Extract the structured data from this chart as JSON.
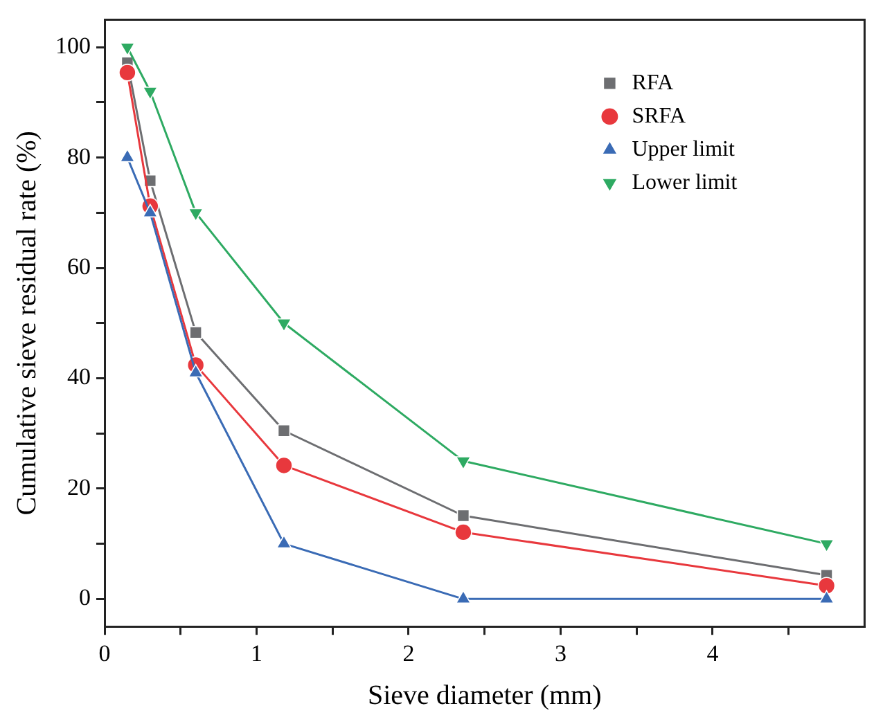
{
  "chart_data": {
    "type": "line",
    "xlabel": "Sieve diameter (mm)",
    "ylabel": "Cumulative sieve residual rate (%)",
    "x": [
      0.15,
      0.3,
      0.6,
      1.18,
      2.36,
      4.75
    ],
    "series": [
      {
        "name": "RFA",
        "color": "#6d6e71",
        "marker": "square",
        "values": [
          97.2,
          75.8,
          48.3,
          30.5,
          15.1,
          4.3
        ]
      },
      {
        "name": "SRFA",
        "color": "#e8383d",
        "marker": "circle",
        "values": [
          95.4,
          71.2,
          42.4,
          24.2,
          12.1,
          2.4
        ]
      },
      {
        "name": "Upper limit",
        "color": "#3a6bb5",
        "marker": "triangle",
        "values": [
          80,
          70,
          41,
          10,
          0,
          0
        ]
      },
      {
        "name": "Lower limit",
        "color": "#2eaa62",
        "marker": "triangle-down",
        "values": [
          100,
          92,
          70,
          50,
          25,
          10
        ]
      }
    ],
    "xlim": [
      0,
      5
    ],
    "xticks": [
      0,
      {
        "value": 0.5,
        "label": null
      },
      1,
      {
        "value": 1.5,
        "label": null
      },
      2,
      {
        "value": 2.5,
        "label": null
      },
      3,
      {
        "value": 3.5,
        "label": null
      },
      4,
      {
        "value": 4.5,
        "label": null
      }
    ],
    "ylim": [
      -5,
      105
    ],
    "yticks": [
      0,
      {
        "value": 10,
        "label": null
      },
      20,
      {
        "value": 30,
        "label": null
      },
      40,
      {
        "value": 50,
        "label": null
      },
      60,
      {
        "value": 70,
        "label": null
      },
      80,
      {
        "value": 90,
        "label": null
      },
      100
    ],
    "grid": false,
    "legend": "top right",
    "line_style": "solid"
  }
}
